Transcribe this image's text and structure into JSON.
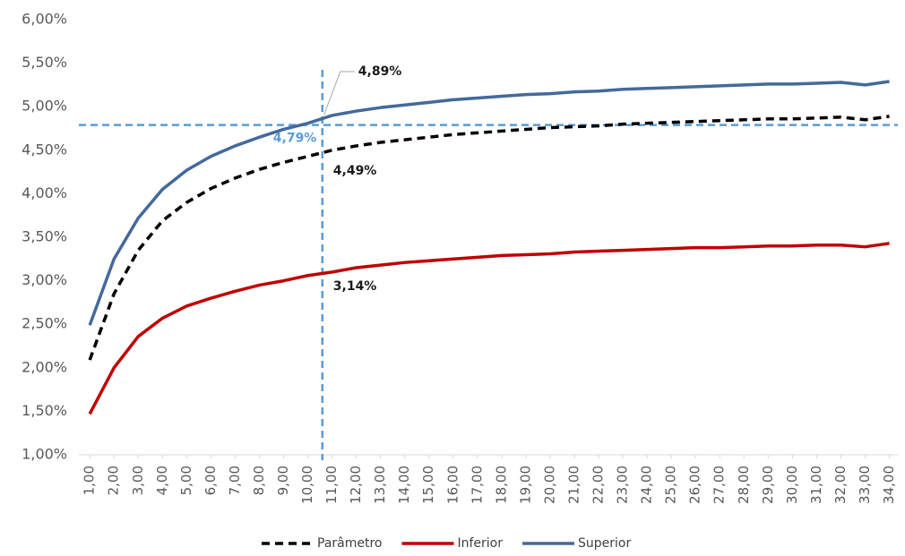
{
  "chart_data": {
    "type": "line",
    "x": [
      1,
      2,
      3,
      4,
      5,
      6,
      7,
      8,
      9,
      10,
      11,
      12,
      13,
      14,
      15,
      16,
      17,
      18,
      19,
      20,
      21,
      22,
      23,
      24,
      25,
      26,
      27,
      28,
      29,
      30,
      31,
      32,
      33,
      34
    ],
    "series": [
      {
        "name": "Parâmetro",
        "color": "#000000",
        "dash": true,
        "values": [
          2.09,
          2.85,
          3.35,
          3.69,
          3.9,
          4.06,
          4.18,
          4.28,
          4.36,
          4.43,
          4.5,
          4.55,
          4.59,
          4.62,
          4.65,
          4.68,
          4.7,
          4.72,
          4.74,
          4.76,
          4.77,
          4.78,
          4.8,
          4.81,
          4.82,
          4.83,
          4.84,
          4.85,
          4.86,
          4.86,
          4.87,
          4.88,
          4.85,
          4.89
        ]
      },
      {
        "name": "Inferior",
        "color": "#c00000",
        "dash": false,
        "values": [
          1.47,
          2.0,
          2.36,
          2.57,
          2.71,
          2.8,
          2.88,
          2.95,
          3.0,
          3.06,
          3.1,
          3.15,
          3.18,
          3.21,
          3.23,
          3.25,
          3.27,
          3.29,
          3.3,
          3.31,
          3.33,
          3.34,
          3.35,
          3.36,
          3.37,
          3.38,
          3.38,
          3.39,
          3.4,
          3.4,
          3.41,
          3.41,
          3.39,
          3.43
        ]
      },
      {
        "name": "Superior",
        "color": "#44699c",
        "dash": false,
        "values": [
          2.49,
          3.25,
          3.72,
          4.05,
          4.27,
          4.43,
          4.55,
          4.65,
          4.74,
          4.81,
          4.9,
          4.95,
          4.99,
          5.02,
          5.05,
          5.08,
          5.1,
          5.12,
          5.14,
          5.15,
          5.17,
          5.18,
          5.2,
          5.21,
          5.22,
          5.23,
          5.24,
          5.25,
          5.26,
          5.26,
          5.27,
          5.28,
          5.25,
          5.29
        ]
      }
    ],
    "xlim": [
      0.55,
      34.35
    ],
    "ylim": [
      1,
      6
    ],
    "xticks": [
      {
        "value": 1,
        "label": "1,00"
      },
      {
        "value": 2,
        "label": "2,00"
      },
      {
        "value": 3,
        "label": "3,00"
      },
      {
        "value": 4,
        "label": "4,00"
      },
      {
        "value": 5,
        "label": "5,00"
      },
      {
        "value": 6,
        "label": "6,00"
      },
      {
        "value": 7,
        "label": "7,00"
      },
      {
        "value": 8,
        "label": "8,00"
      },
      {
        "value": 9,
        "label": "9,00"
      },
      {
        "value": 10,
        "label": "10,00"
      },
      {
        "value": 11,
        "label": "11,00"
      },
      {
        "value": 12,
        "label": "12,00"
      },
      {
        "value": 13,
        "label": "13,00"
      },
      {
        "value": 14,
        "label": "14,00"
      },
      {
        "value": 15,
        "label": "15,00"
      },
      {
        "value": 16,
        "label": "16,00"
      },
      {
        "value": 17,
        "label": "17,00"
      },
      {
        "value": 18,
        "label": "18,00"
      },
      {
        "value": 19,
        "label": "19,00"
      },
      {
        "value": 20,
        "label": "20,00"
      },
      {
        "value": 21,
        "label": "21,00"
      },
      {
        "value": 22,
        "label": "22,00"
      },
      {
        "value": 23,
        "label": "23,00"
      },
      {
        "value": 24,
        "label": "24,00"
      },
      {
        "value": 25,
        "label": "25,00"
      },
      {
        "value": 26,
        "label": "26,00"
      },
      {
        "value": 27,
        "label": "27,00"
      },
      {
        "value": 28,
        "label": "28,00"
      },
      {
        "value": 29,
        "label": "29,00"
      },
      {
        "value": 30,
        "label": "30,00"
      },
      {
        "value": 31,
        "label": "31,00"
      },
      {
        "value": 32,
        "label": "32,00"
      },
      {
        "value": 33,
        "label": "33,00"
      },
      {
        "value": 34,
        "label": "34,00"
      }
    ],
    "yticks": [
      {
        "value": 1,
        "label": "1,00%"
      },
      {
        "value": 1.5,
        "label": "1,50%"
      },
      {
        "value": 2,
        "label": "2,00%"
      },
      {
        "value": 2.5,
        "label": "2,50%"
      },
      {
        "value": 3,
        "label": "3,00%"
      },
      {
        "value": 3.5,
        "label": "3,50%"
      },
      {
        "value": 4,
        "label": "4,00%"
      },
      {
        "value": 4.5,
        "label": "4,50%"
      },
      {
        "value": 5,
        "label": "5,00%"
      },
      {
        "value": 5.5,
        "label": "5,50%"
      },
      {
        "value": 6,
        "label": "6,00%"
      }
    ],
    "grid": false,
    "legend": "bottom",
    "reference_x": 10.6,
    "reference_y": 4.79,
    "reference_color": "#5b9bd5",
    "annotations": [
      {
        "label": "4,89%",
        "value": 4.89
      },
      {
        "label": "4,49%",
        "value": 4.49
      },
      {
        "label": "3,14%",
        "value": 3.14
      },
      {
        "label": "4,79%",
        "value": 4.79
      }
    ]
  }
}
